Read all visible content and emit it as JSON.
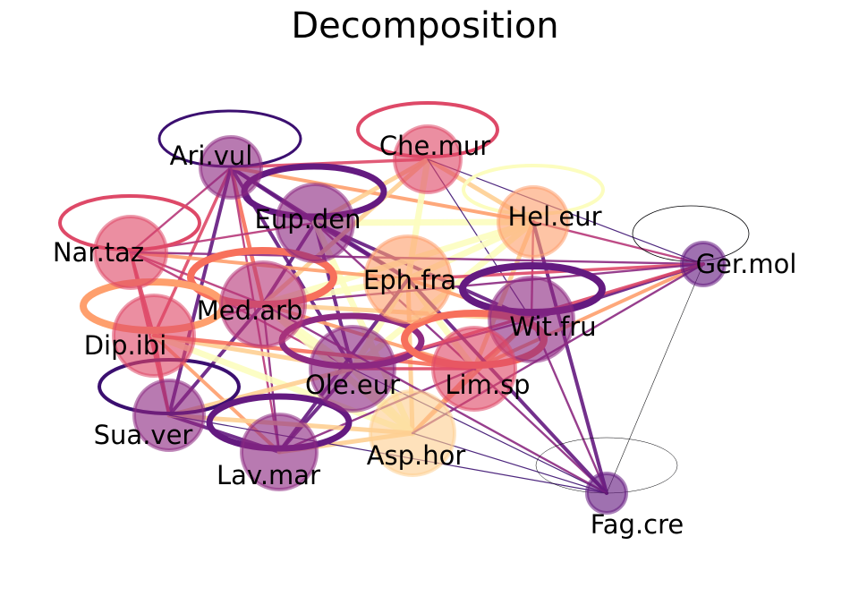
{
  "title": "Decomposition",
  "palette": {
    "dark": "#3b0f70",
    "purple": "#641a80",
    "magenta": "#8c2981",
    "pink": "#b73779",
    "red": "#de4968",
    "salmon": "#f7705c",
    "orange": "#fe9f6d",
    "peach": "#fecf92",
    "yellow": "#fcfdbf"
  },
  "nodes": [
    {
      "id": "ari",
      "label": "Ari.vul",
      "color": "#8c2981"
    },
    {
      "id": "che",
      "label": "Che.mur",
      "color": "#de4968"
    },
    {
      "id": "eup",
      "label": "Eup.den",
      "color": "#8c2981"
    },
    {
      "id": "hel",
      "label": "Hel.eur",
      "color": "#fe9f6d"
    },
    {
      "id": "nar",
      "label": "Nar.taz",
      "color": "#de4968"
    },
    {
      "id": "ger",
      "label": "Ger.mol",
      "color": "#641a80"
    },
    {
      "id": "eph",
      "label": "Eph.fra",
      "color": "#fe9f6d"
    },
    {
      "id": "med",
      "label": "Med.arb",
      "color": "#b73779"
    },
    {
      "id": "wit",
      "label": "Wit.fru",
      "color": "#8c2981"
    },
    {
      "id": "dip",
      "label": "Dip.ibi",
      "color": "#de4968"
    },
    {
      "id": "ole",
      "label": "Ole.eur",
      "color": "#8c2981"
    },
    {
      "id": "lim",
      "label": "Lim.sp",
      "color": "#de4968"
    },
    {
      "id": "sua",
      "label": "Sua.ver",
      "color": "#8c2981"
    },
    {
      "id": "asp",
      "label": "Asp.hor",
      "color": "#fecf92"
    },
    {
      "id": "lav",
      "label": "Lav.mar",
      "color": "#8c2981"
    },
    {
      "id": "fag",
      "label": "Fag.cre",
      "color": "#641a80"
    }
  ],
  "loops": [
    {
      "node": "ari",
      "color": "#3b0f70"
    },
    {
      "node": "che",
      "color": "#de4968"
    },
    {
      "node": "eup",
      "color": "#641a80"
    },
    {
      "node": "hel",
      "color": "#fcfdbf"
    },
    {
      "node": "nar",
      "color": "#de4968"
    },
    {
      "node": "ger",
      "color": "#000004"
    },
    {
      "node": "med",
      "color": "#f7705c"
    },
    {
      "node": "wit",
      "color": "#641a80"
    },
    {
      "node": "dip",
      "color": "#fe9f6d"
    },
    {
      "node": "ole",
      "color": "#8c2981"
    },
    {
      "node": "lim",
      "color": "#f7705c"
    },
    {
      "node": "sua",
      "color": "#3b0f70"
    },
    {
      "node": "lav",
      "color": "#641a80"
    },
    {
      "node": "fag",
      "color": "#000004"
    }
  ],
  "edges": [
    {
      "source": "ari",
      "target": "eup",
      "color": "#641a80"
    },
    {
      "source": "ari",
      "target": "che",
      "color": "#de4968"
    },
    {
      "source": "ari",
      "target": "nar",
      "color": "#b73779"
    },
    {
      "source": "ari",
      "target": "med",
      "color": "#f7705c"
    },
    {
      "source": "ari",
      "target": "dip",
      "color": "#de4968"
    },
    {
      "source": "ari",
      "target": "sua",
      "color": "#641a80"
    },
    {
      "source": "ari",
      "target": "eph",
      "color": "#641a80"
    },
    {
      "source": "ari",
      "target": "ole",
      "color": "#641a80"
    },
    {
      "source": "ari",
      "target": "hel",
      "color": "#fe9f6d"
    },
    {
      "source": "ari",
      "target": "lav",
      "color": "#b73779"
    },
    {
      "source": "eup",
      "target": "eph",
      "color": "#641a80"
    },
    {
      "source": "eup",
      "target": "che",
      "color": "#fecf92"
    },
    {
      "source": "eup",
      "target": "hel",
      "color": "#fcfdbf"
    },
    {
      "source": "eup",
      "target": "med",
      "color": "#641a80"
    },
    {
      "source": "eup",
      "target": "ole",
      "color": "#641a80"
    },
    {
      "source": "eup",
      "target": "lim",
      "color": "#8c2981"
    },
    {
      "source": "eup",
      "target": "wit",
      "color": "#641a80"
    },
    {
      "source": "eup",
      "target": "nar",
      "color": "#b73779"
    },
    {
      "source": "eup",
      "target": "asp",
      "color": "#fcfdbf"
    },
    {
      "source": "che",
      "target": "eph",
      "color": "#fcfdbf"
    },
    {
      "source": "che",
      "target": "hel",
      "color": "#fecf92"
    },
    {
      "source": "che",
      "target": "med",
      "color": "#fecf92"
    },
    {
      "source": "che",
      "target": "wit",
      "color": "#3b0f70"
    },
    {
      "source": "che",
      "target": "ger",
      "color": "#3b0f70"
    },
    {
      "source": "hel",
      "target": "eph",
      "color": "#fcfdbf"
    },
    {
      "source": "hel",
      "target": "med",
      "color": "#fcfdbf"
    },
    {
      "source": "hel",
      "target": "ole",
      "color": "#fcfdbf"
    },
    {
      "source": "hel",
      "target": "wit",
      "color": "#b73779"
    },
    {
      "source": "hel",
      "target": "lim",
      "color": "#fecf92"
    },
    {
      "source": "hel",
      "target": "fag",
      "color": "#641a80"
    },
    {
      "source": "nar",
      "target": "med",
      "color": "#b73779"
    },
    {
      "source": "nar",
      "target": "dip",
      "color": "#de4968"
    },
    {
      "source": "nar",
      "target": "eph",
      "color": "#fe9f6d"
    },
    {
      "source": "nar",
      "target": "sua",
      "color": "#de4968"
    },
    {
      "source": "nar",
      "target": "ger",
      "color": "#8c2981"
    },
    {
      "source": "nar",
      "target": "ole",
      "color": "#b73779"
    },
    {
      "source": "med",
      "target": "eph",
      "color": "#fcfdbf"
    },
    {
      "source": "med",
      "target": "ole",
      "color": "#fcfdbf"
    },
    {
      "source": "med",
      "target": "dip",
      "color": "#b73779"
    },
    {
      "source": "med",
      "target": "sua",
      "color": "#641a80"
    },
    {
      "source": "med",
      "target": "lav",
      "color": "#8c2981"
    },
    {
      "source": "med",
      "target": "asp",
      "color": "#fcfdbf"
    },
    {
      "source": "med",
      "target": "lim",
      "color": "#fe9f6d"
    },
    {
      "source": "med",
      "target": "wit",
      "color": "#fecf92"
    },
    {
      "source": "eph",
      "target": "ole",
      "color": "#fcfdbf"
    },
    {
      "source": "eph",
      "target": "lim",
      "color": "#fcfdbf"
    },
    {
      "source": "eph",
      "target": "wit",
      "color": "#fe9f6d"
    },
    {
      "source": "eph",
      "target": "asp",
      "color": "#fecf92"
    },
    {
      "source": "eph",
      "target": "ger",
      "color": "#de4968"
    },
    {
      "source": "eph",
      "target": "lav",
      "color": "#641a80"
    },
    {
      "source": "dip",
      "target": "ole",
      "color": "#fecf92"
    },
    {
      "source": "dip",
      "target": "sua",
      "color": "#de4968"
    },
    {
      "source": "dip",
      "target": "lav",
      "color": "#fe9f6d"
    },
    {
      "source": "dip",
      "target": "asp",
      "color": "#fcfdbf"
    },
    {
      "source": "dip",
      "target": "lim",
      "color": "#f7705c"
    },
    {
      "source": "ole",
      "target": "lim",
      "color": "#de4968"
    },
    {
      "source": "ole",
      "target": "asp",
      "color": "#fcfdbf"
    },
    {
      "source": "ole",
      "target": "lav",
      "color": "#641a80"
    },
    {
      "source": "ole",
      "target": "sua",
      "color": "#fecf92"
    },
    {
      "source": "ole",
      "target": "wit",
      "color": "#8c2981"
    },
    {
      "source": "lim",
      "target": "wit",
      "color": "#f7705c"
    },
    {
      "source": "lim",
      "target": "asp",
      "color": "#fe9f6d"
    },
    {
      "source": "lim",
      "target": "ger",
      "color": "#fe9f6d"
    },
    {
      "source": "lim",
      "target": "fag",
      "color": "#8c2981"
    },
    {
      "source": "lim",
      "target": "lav",
      "color": "#8c2981"
    },
    {
      "source": "wit",
      "target": "ger",
      "color": "#641a80"
    },
    {
      "source": "wit",
      "target": "asp",
      "color": "#fe9f6d"
    },
    {
      "source": "wit",
      "target": "fag",
      "color": "#8c2981"
    },
    {
      "source": "sua",
      "target": "lav",
      "color": "#641a80"
    },
    {
      "source": "sua",
      "target": "asp",
      "color": "#fecf92"
    },
    {
      "source": "lav",
      "target": "asp",
      "color": "#fecf92"
    },
    {
      "source": "asp",
      "target": "fag",
      "color": "#3b0f70"
    },
    {
      "source": "asp",
      "target": "ger",
      "color": "#8c2981"
    },
    {
      "source": "ger",
      "target": "fag",
      "color": "#000004"
    },
    {
      "source": "ger",
      "target": "hel",
      "color": "#b73779"
    },
    {
      "source": "ger",
      "target": "med",
      "color": "#8c2981"
    },
    {
      "source": "ger",
      "target": "ole",
      "color": "#de4968"
    },
    {
      "source": "fag",
      "target": "ole",
      "color": "#3b0f70"
    },
    {
      "source": "fag",
      "target": "eph",
      "color": "#641a80"
    },
    {
      "source": "fag",
      "target": "sua",
      "color": "#3b0f70"
    },
    {
      "source": "fag",
      "target": "med",
      "color": "#8c2981"
    }
  ]
}
